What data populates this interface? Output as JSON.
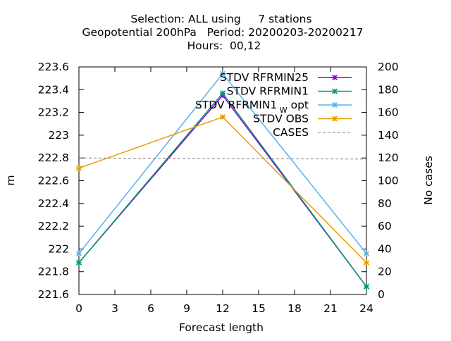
{
  "chart_data": {
    "type": "line",
    "title": [
      "Selection: ALL using     7 stations",
      "Geopotential 200hPa   Period: 20200203-20200217",
      "Hours:  00,12"
    ],
    "xlabel": "Forecast length",
    "ylabel": "m",
    "y2label": "No cases",
    "x_ticks": [
      0,
      3,
      6,
      9,
      12,
      15,
      18,
      21,
      24
    ],
    "y_ticks": [
      "221.6",
      "221.8",
      "222",
      "222.2",
      "222.4",
      "222.6",
      "222.8",
      "223",
      "223.2",
      "223.4",
      "223.6"
    ],
    "y2_ticks": [
      0,
      20,
      40,
      60,
      80,
      100,
      120,
      140,
      160,
      180,
      200
    ],
    "xlim": [
      0,
      24
    ],
    "ylim": [
      221.6,
      223.6
    ],
    "y2lim": [
      0,
      200
    ],
    "grid": false,
    "legend_position": "top-right",
    "series": [
      {
        "name": "STDV RFRMIN25",
        "color": "#9400d3",
        "marker": "x",
        "axis": "y",
        "x": [
          0,
          12,
          24
        ],
        "y": [
          221.88,
          223.35,
          221.67
        ]
      },
      {
        "name": "STDV RFRMIN1",
        "color": "#009e73",
        "marker": "x",
        "axis": "y",
        "x": [
          0,
          12,
          24
        ],
        "y": [
          221.88,
          223.37,
          221.67
        ]
      },
      {
        "name": "STDV RFRMIN1",
        "name_subscript": "W",
        "name_suffix": "opt",
        "color": "#56b4e9",
        "marker": "x",
        "axis": "y",
        "x": [
          0,
          12,
          24
        ],
        "y": [
          221.96,
          223.54,
          221.96
        ]
      },
      {
        "name": "STDV OBS",
        "color": "#e69f00",
        "marker": "x",
        "axis": "y",
        "x": [
          0,
          12,
          24
        ],
        "y": [
          222.71,
          223.16,
          221.88
        ]
      },
      {
        "name": "CASES",
        "color": "#808080",
        "dashed": true,
        "axis": "y2",
        "x": [
          0,
          24
        ],
        "y": [
          120,
          119
        ]
      }
    ]
  }
}
